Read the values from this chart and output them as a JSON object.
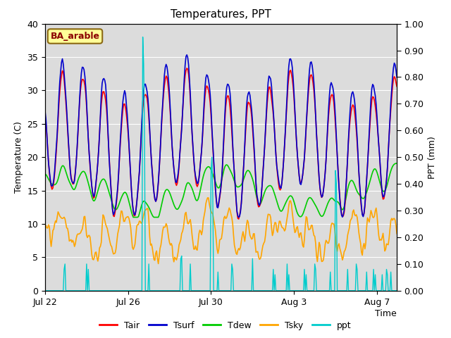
{
  "title": "Temperatures, PPT",
  "xlabel": "Time",
  "ylabel_left": "Temperature (C)",
  "ylabel_right": "PPT (mm)",
  "ylim_left": [
    0,
    40
  ],
  "ylim_right": [
    0.0,
    1.0
  ],
  "yticks_left": [
    0,
    5,
    10,
    15,
    20,
    25,
    30,
    35,
    40
  ],
  "yticks_right": [
    0.0,
    0.1,
    0.2,
    0.3,
    0.4,
    0.5,
    0.6,
    0.7,
    0.8,
    0.9,
    1.0
  ],
  "xtick_labels": [
    "Jul 22",
    "Jul 26",
    "Jul 30",
    "Aug 3",
    "Aug 7"
  ],
  "site_label": "BA_arable",
  "site_label_color": "#8B0000",
  "site_label_bg": "#FFFF99",
  "site_label_border": "#8B6914",
  "colors": {
    "Tair": "#FF0000",
    "Tsurf": "#0000CD",
    "Tdew": "#00CC00",
    "Tsky": "#FFA500",
    "ppt": "#00CCCC"
  },
  "linewidths": {
    "Tair": 1.2,
    "Tsurf": 1.2,
    "Tdew": 1.2,
    "Tsky": 1.2,
    "ppt": 1.0
  },
  "bg_color": "#DCDCDC",
  "fig_bg": "#FFFFFF",
  "grid_color": "#FFFFFF"
}
